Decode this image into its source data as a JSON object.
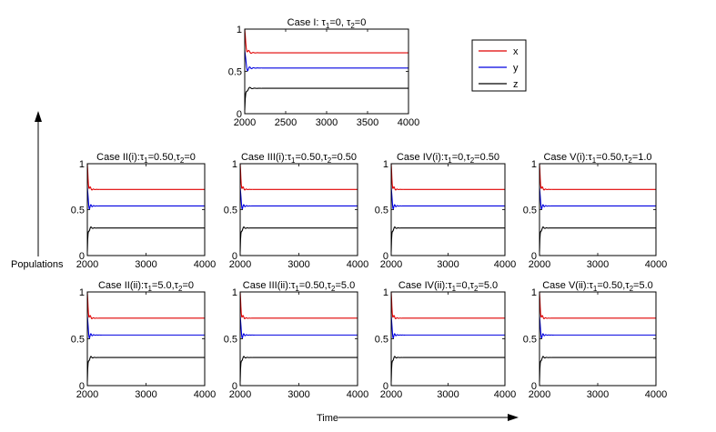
{
  "figure": {
    "ylabel": "Populations",
    "xlabel": "Time",
    "colors": {
      "x": "#e00000",
      "y": "#0000e0",
      "z": "#000000"
    }
  },
  "legend": {
    "entries": [
      "x",
      "y",
      "z"
    ],
    "placement": "top-right"
  },
  "chart_data": [
    {
      "id": "case1",
      "type": "line",
      "title_parts": [
        "Case I: τ",
        "1",
        "=0, τ",
        "2",
        "=0"
      ],
      "x_ticks": [
        "2000",
        "2500",
        "3000",
        "3500",
        "4000"
      ],
      "xlim": [
        2000,
        4000
      ],
      "y_ticks": [
        "0",
        "0.5",
        "1"
      ],
      "ylim": [
        0,
        1
      ],
      "series": [
        {
          "name": "x",
          "steady": 0.72
        },
        {
          "name": "y",
          "steady": 0.54
        },
        {
          "name": "z",
          "steady": 0.3
        }
      ]
    },
    {
      "id": "case2i",
      "type": "line",
      "title_parts": [
        "Case II(i):τ",
        "1",
        "=0.50,τ",
        "2",
        "=0"
      ],
      "x_ticks": [
        "2000",
        "3000",
        "4000"
      ],
      "xlim": [
        2000,
        4000
      ],
      "y_ticks": [
        "0",
        "0.5",
        "1"
      ],
      "ylim": [
        0,
        1
      ],
      "series": [
        {
          "name": "x",
          "steady": 0.72
        },
        {
          "name": "y",
          "steady": 0.54
        },
        {
          "name": "z",
          "steady": 0.3
        }
      ]
    },
    {
      "id": "case3i",
      "type": "line",
      "title_parts": [
        "Case III(i):τ",
        "1",
        "=0.50,τ",
        "2",
        "=0.50"
      ],
      "x_ticks": [
        "2000",
        "3000",
        "4000"
      ],
      "xlim": [
        2000,
        4000
      ],
      "y_ticks": [
        "0",
        "0.5",
        "1"
      ],
      "ylim": [
        0,
        1
      ],
      "series": [
        {
          "name": "x",
          "steady": 0.72
        },
        {
          "name": "y",
          "steady": 0.54
        },
        {
          "name": "z",
          "steady": 0.3
        }
      ]
    },
    {
      "id": "case4i",
      "type": "line",
      "title_parts": [
        "Case IV(i):τ",
        "1",
        "=0,τ",
        "2",
        "=0.50"
      ],
      "x_ticks": [
        "2000",
        "3000",
        "4000"
      ],
      "xlim": [
        2000,
        4000
      ],
      "y_ticks": [
        "0",
        "0.5",
        "1"
      ],
      "ylim": [
        0,
        1
      ],
      "series": [
        {
          "name": "x",
          "steady": 0.72
        },
        {
          "name": "y",
          "steady": 0.54
        },
        {
          "name": "z",
          "steady": 0.3
        }
      ]
    },
    {
      "id": "case5i",
      "type": "line",
      "title_parts": [
        "Case V(i):τ",
        "1",
        "=0.50,τ",
        "2",
        "=1.0"
      ],
      "x_ticks": [
        "2000",
        "3000",
        "4000"
      ],
      "xlim": [
        2000,
        4000
      ],
      "y_ticks": [
        "0",
        "0.5",
        "1"
      ],
      "ylim": [
        0,
        1
      ],
      "series": [
        {
          "name": "x",
          "steady": 0.72
        },
        {
          "name": "y",
          "steady": 0.54
        },
        {
          "name": "z",
          "steady": 0.3
        }
      ]
    },
    {
      "id": "case2ii",
      "type": "line",
      "title_parts": [
        "Case II(ii):τ",
        "1",
        "=5.0,τ",
        "2",
        "=0"
      ],
      "x_ticks": [
        "2000",
        "3000",
        "4000"
      ],
      "xlim": [
        2000,
        4000
      ],
      "y_ticks": [
        "0",
        "0.5",
        "1"
      ],
      "ylim": [
        0,
        1
      ],
      "series": [
        {
          "name": "x",
          "steady": 0.72
        },
        {
          "name": "y",
          "steady": 0.54
        },
        {
          "name": "z",
          "steady": 0.3
        }
      ]
    },
    {
      "id": "case3ii",
      "type": "line",
      "title_parts": [
        "Case III(ii):τ",
        "1",
        "=0.50,τ",
        "2",
        "=5.0"
      ],
      "x_ticks": [
        "2000",
        "3000",
        "4000"
      ],
      "xlim": [
        2000,
        4000
      ],
      "y_ticks": [
        "0",
        "0.5",
        "1"
      ],
      "ylim": [
        0,
        1
      ],
      "series": [
        {
          "name": "x",
          "steady": 0.72
        },
        {
          "name": "y",
          "steady": 0.54
        },
        {
          "name": "z",
          "steady": 0.3
        }
      ]
    },
    {
      "id": "case4ii",
      "type": "line",
      "title_parts": [
        "Case IV(ii):τ",
        "1",
        "=0,τ",
        "2",
        "=5.0"
      ],
      "x_ticks": [
        "2000",
        "3000",
        "4000"
      ],
      "xlim": [
        2000,
        4000
      ],
      "y_ticks": [
        "0",
        "0.5",
        "1"
      ],
      "ylim": [
        0,
        1
      ],
      "series": [
        {
          "name": "x",
          "steady": 0.72
        },
        {
          "name": "y",
          "steady": 0.54
        },
        {
          "name": "z",
          "steady": 0.3
        }
      ]
    },
    {
      "id": "case5ii",
      "type": "line",
      "title_parts": [
        "Case V(ii):τ",
        "1",
        "=0.50,τ",
        "2",
        "=5.0"
      ],
      "x_ticks": [
        "2000",
        "3000",
        "4000"
      ],
      "xlim": [
        2000,
        4000
      ],
      "y_ticks": [
        "0",
        "0.5",
        "1"
      ],
      "ylim": [
        0,
        1
      ],
      "series": [
        {
          "name": "x",
          "steady": 0.72
        },
        {
          "name": "y",
          "steady": 0.54
        },
        {
          "name": "z",
          "steady": 0.3
        }
      ]
    }
  ]
}
